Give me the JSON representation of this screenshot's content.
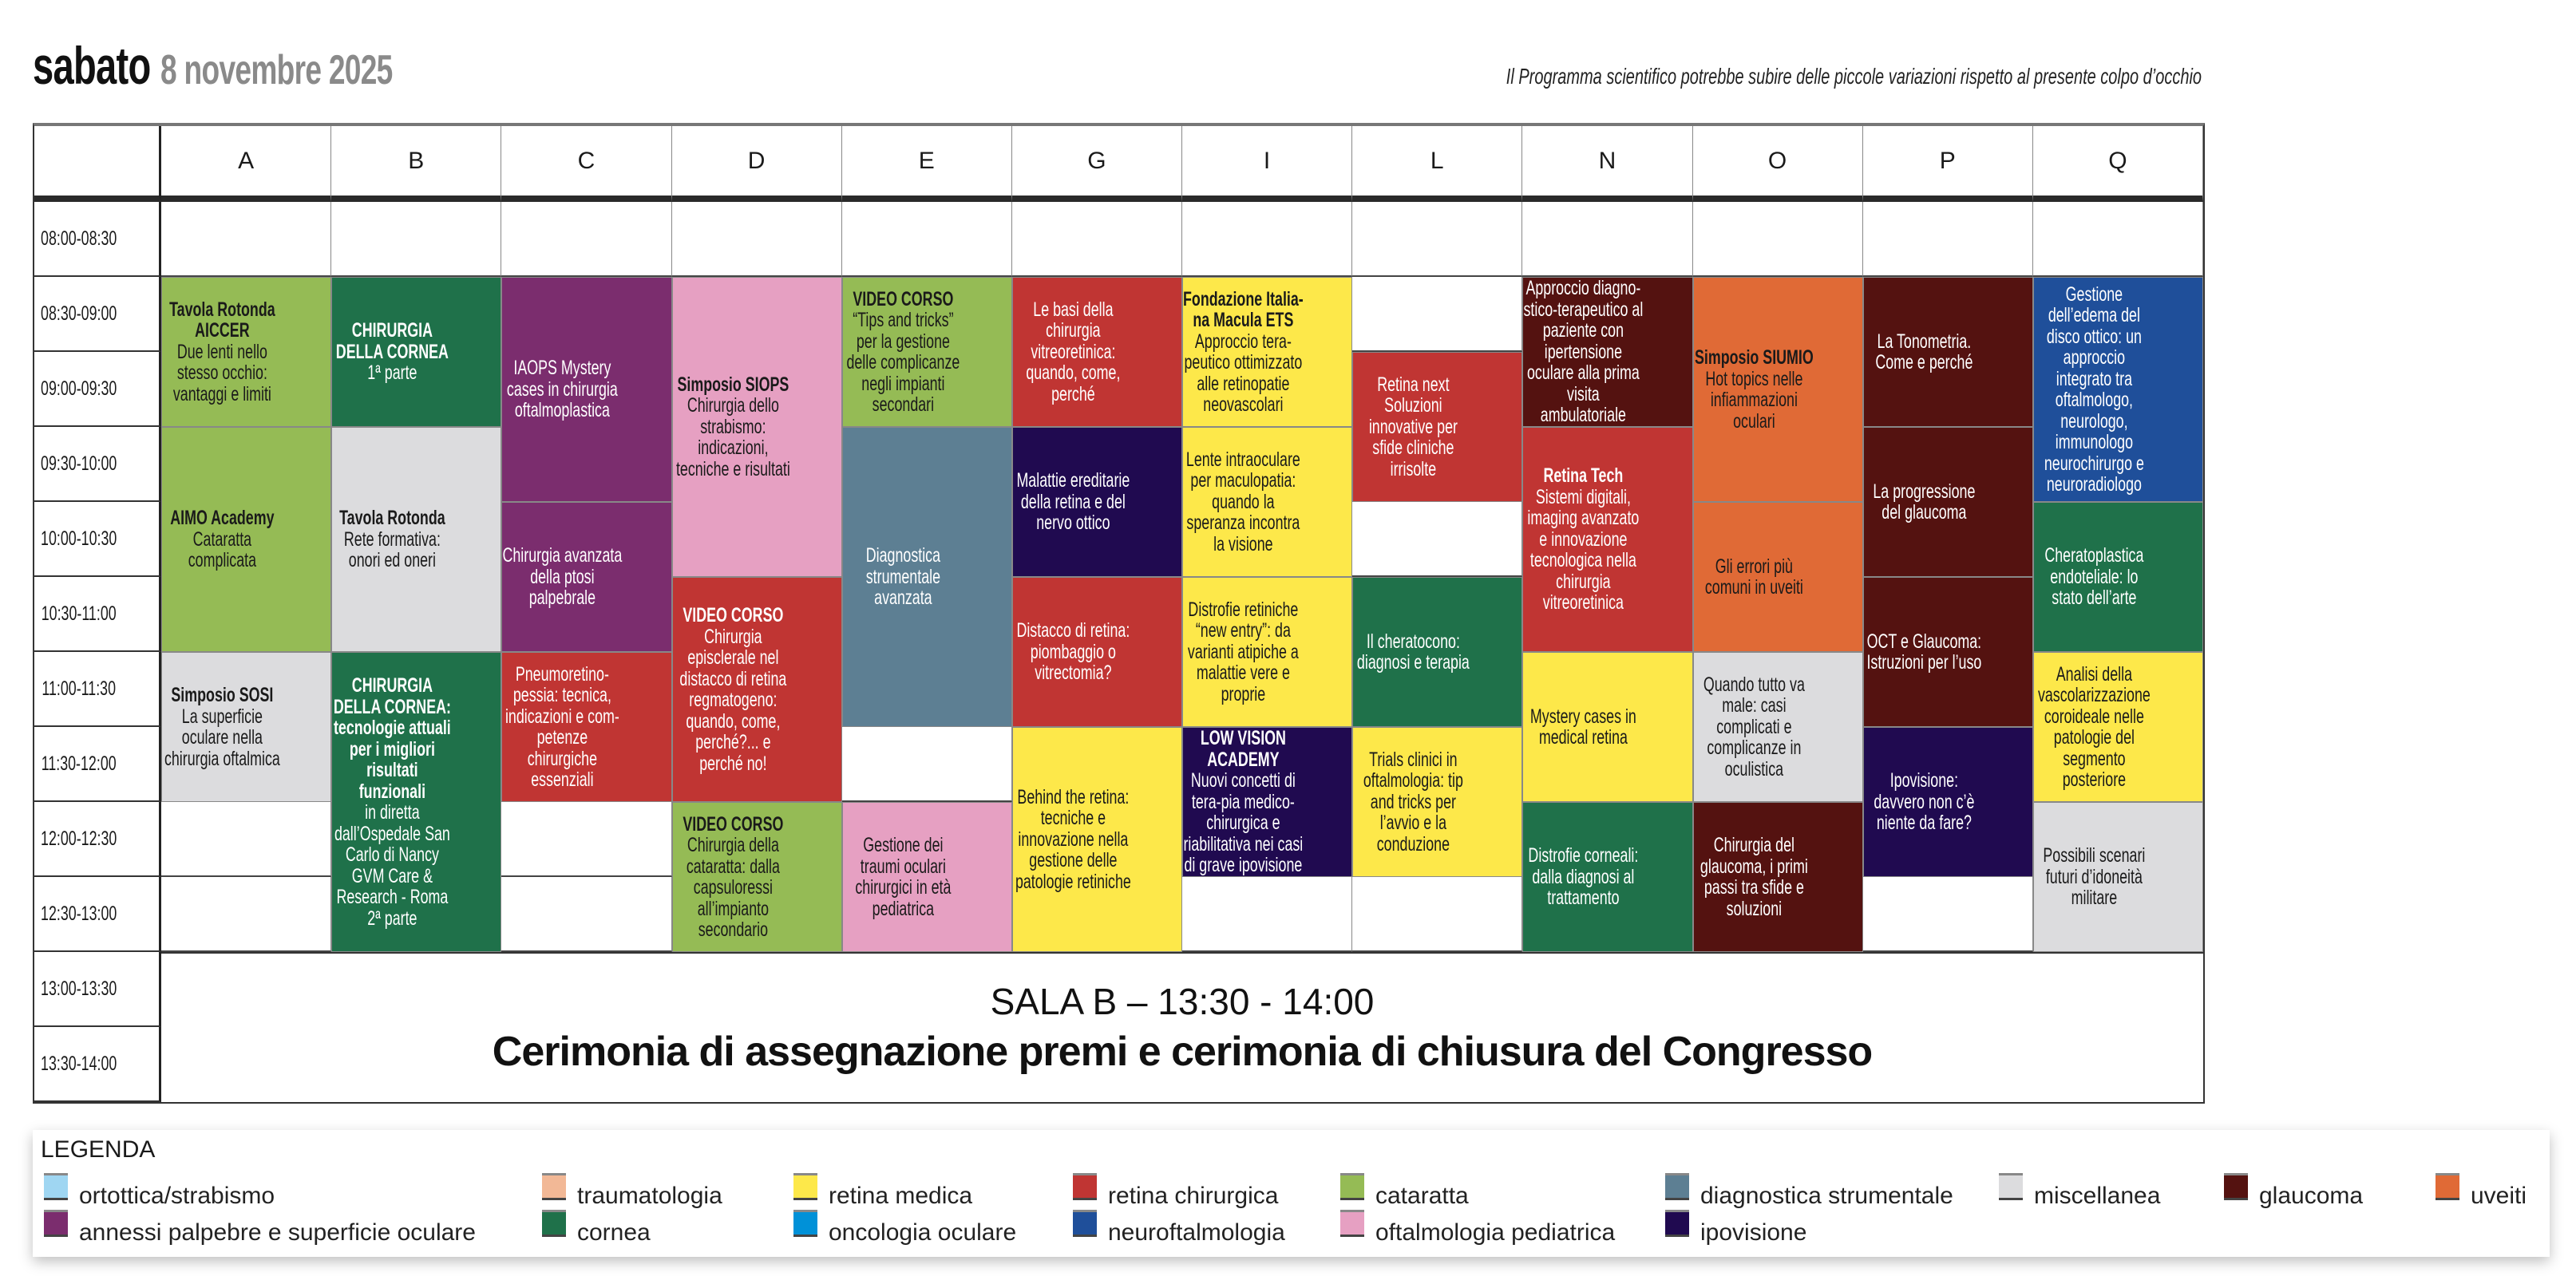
{
  "header": {
    "day": "sabato",
    "date": "8 novembre 2025",
    "note": "Il Programma scientifico potrebbe subire delle piccole variazioni rispetto al presente colpo d’occhio"
  },
  "columns": [
    "A",
    "B",
    "C",
    "D",
    "E",
    "G",
    "I",
    "L",
    "N",
    "O",
    "P",
    "Q"
  ],
  "times": [
    "08:00-08:30",
    "08:30-09:00",
    "09:00-09:30",
    "09:30-10:00",
    "10:00-10:30",
    "10:30-11:00",
    "11:00-11:30",
    "11:30-12:00",
    "12:00-12:30",
    "12:30-13:00",
    "13:00-13:30",
    "13:30-14:00"
  ],
  "sessions": [
    {
      "col": "A",
      "start": "08:30",
      "end": "09:30",
      "category": "cataratta",
      "title": "Tavola Rotonda AICCER",
      "body": "Due lenti nello stesso occhio: vantaggi e limiti"
    },
    {
      "col": "A",
      "start": "09:30",
      "end": "11:00",
      "category": "cataratta",
      "title": "AIMO Academy",
      "body": "Cataratta complicata"
    },
    {
      "col": "A",
      "start": "11:00",
      "end": "12:00",
      "category": "miscellanea",
      "title": "Simposio SOSI",
      "body": "La superficie oculare nella chirurgia oftalmica"
    },
    {
      "col": "B",
      "start": "08:30",
      "end": "09:30",
      "category": "cornea",
      "title": "CHIRURGIA DELLA CORNEA",
      "body": "1ª parte"
    },
    {
      "col": "B",
      "start": "09:30",
      "end": "11:00",
      "category": "miscellanea",
      "title": "Tavola Rotonda",
      "body": "Rete formativa: onori ed oneri"
    },
    {
      "col": "B",
      "start": "11:00",
      "end": "13:00",
      "category": "cornea",
      "title": "CHIRURGIA DELLA CORNEA: tecnologie attuali per i migliori risultati funzionali",
      "body": "in diretta dall’Ospedale San Carlo di Nancy GVM Care & Research - Roma 2ª parte"
    },
    {
      "col": "C",
      "start": "08:30",
      "end": "10:00",
      "category": "annessi palpebre e superficie oculare",
      "title": "",
      "body": "IAOPS Mystery cases in chirurgia oftalmoplastica"
    },
    {
      "col": "C",
      "start": "10:00",
      "end": "11:00",
      "category": "annessi palpebre e superficie oculare",
      "title": "",
      "body": "Chirurgia avanzata della ptosi palpebrale"
    },
    {
      "col": "C",
      "start": "11:00",
      "end": "12:00",
      "category": "retina chirurgica",
      "title": "",
      "body": "Pneumoretino-pessia: tecnica, indicazioni e com-petenze chirurgiche essenziali"
    },
    {
      "col": "D",
      "start": "08:30",
      "end": "10:30",
      "category": "oftalmologia pediatrica",
      "title": "Simposio SIOPS",
      "body": "Chirurgia dello strabismo: indicazioni, tecniche e risultati"
    },
    {
      "col": "D",
      "start": "10:30",
      "end": "12:00",
      "category": "retina chirurgica",
      "title": "VIDEO CORSO",
      "body": "Chirurgia episclerale nel distacco di retina regmatogeno: quando, come, perché?... e perché no!"
    },
    {
      "col": "D",
      "start": "12:00",
      "end": "13:00",
      "category": "cataratta",
      "title": "VIDEO CORSO",
      "body": "Chirurgia della cataratta: dalla capsuloressi all’impianto secondario"
    },
    {
      "col": "E",
      "start": "08:30",
      "end": "09:30",
      "category": "cataratta",
      "title": "VIDEO CORSO",
      "body": "“Tips and tricks” per la gestione delle complicanze negli impianti secondari"
    },
    {
      "col": "E",
      "start": "09:30",
      "end": "11:30",
      "category": "diagnostica strumentale",
      "title": "",
      "body": "Diagnostica strumentale avanzata"
    },
    {
      "col": "E",
      "start": "12:00",
      "end": "13:00",
      "category": "oftalmologia pediatrica",
      "title": "",
      "body": "Gestione dei traumi oculari chirurgici in età pediatrica"
    },
    {
      "col": "G",
      "start": "08:30",
      "end": "09:30",
      "category": "retina chirurgica",
      "title": "",
      "body": "Le basi della chirurgia vitreoretinica: quando, come, perché"
    },
    {
      "col": "G",
      "start": "09:30",
      "end": "10:30",
      "category": "ipovisione",
      "title": "",
      "body": "Malattie ereditarie della retina e del nervo ottico"
    },
    {
      "col": "G",
      "start": "10:30",
      "end": "11:30",
      "category": "retina chirurgica",
      "title": "",
      "body": "Distacco di retina: piombaggio o vitrectomia?"
    },
    {
      "col": "G",
      "start": "11:30",
      "end": "13:00",
      "category": "retina medica",
      "title": "",
      "body": "Behind the retina: tecniche e innovazione nella gestione delle patologie retiniche"
    },
    {
      "col": "I",
      "start": "08:30",
      "end": "09:30",
      "category": "retina medica",
      "title": "Fondazione Italia-na Macula ETS",
      "body": "Approccio tera-peutico ottimizzato alle retinopatie neovascolari"
    },
    {
      "col": "I",
      "start": "09:30",
      "end": "10:30",
      "category": "retina medica",
      "title": "",
      "body": "Lente intraoculare per maculopatia: quando la speranza incontra la visione"
    },
    {
      "col": "I",
      "start": "10:30",
      "end": "11:30",
      "category": "retina medica",
      "title": "",
      "body": "Distrofie retiniche “new entry”: da varianti atipiche a malattie vere e proprie"
    },
    {
      "col": "I",
      "start": "11:30",
      "end": "12:30",
      "category": "ipovisione",
      "title": "LOW VISION ACADEMY",
      "body": "Nuovi concetti di tera-pia medico-chirurgica e riabilitativa nei casi di grave ipovisione"
    },
    {
      "col": "L",
      "start": "09:00",
      "end": "10:00",
      "category": "retina chirurgica",
      "title": "",
      "body": "Retina next Soluzioni innovative per sfide cliniche irrisolte"
    },
    {
      "col": "L",
      "start": "10:30",
      "end": "11:30",
      "category": "cornea",
      "title": "",
      "body": "Il cheratocono: diagnosi e terapia"
    },
    {
      "col": "L",
      "start": "11:30",
      "end": "12:30",
      "category": "retina medica",
      "title": "",
      "body": "Trials clinici in oftalmologia: tip and tricks per l’avvio e la conduzione"
    },
    {
      "col": "N",
      "start": "08:30",
      "end": "09:30",
      "category": "glaucoma",
      "title": "",
      "body": "Approccio diagno-stico-terapeutico al paziente con ipertensione oculare alla prima visita ambulatoriale"
    },
    {
      "col": "N",
      "start": "09:30",
      "end": "11:00",
      "category": "retina chirurgica",
      "title": "Retina Tech",
      "body": "Sistemi digitali, imaging avanzato e innovazione tecnologica nella chirurgia vitreoretinica"
    },
    {
      "col": "N",
      "start": "11:00",
      "end": "12:00",
      "category": "retina medica",
      "title": "",
      "body": "Mystery cases in medical retina"
    },
    {
      "col": "N",
      "start": "12:00",
      "end": "13:00",
      "category": "cornea",
      "title": "",
      "body": "Distrofie corneali: dalla diagnosi al trattamento"
    },
    {
      "col": "O",
      "start": "08:30",
      "end": "10:00",
      "category": "uveiti",
      "title": "Simposio SIUMIO",
      "body": "Hot topics nelle infiammazioni oculari"
    },
    {
      "col": "O",
      "start": "10:00",
      "end": "11:00",
      "category": "uveiti",
      "title": "",
      "body": "Gli errori più comuni in uveiti"
    },
    {
      "col": "O",
      "start": "11:00",
      "end": "12:00",
      "category": "miscellanea",
      "title": "",
      "body": "Quando tutto va male: casi complicati e complicanze in oculistica"
    },
    {
      "col": "O",
      "start": "12:00",
      "end": "13:00",
      "category": "glaucoma",
      "title": "",
      "body": "Chirurgia del glaucoma, i primi passi tra sfide e soluzioni"
    },
    {
      "col": "P",
      "start": "08:30",
      "end": "09:30",
      "category": "glaucoma",
      "title": "",
      "body": "La Tonometria. Come e perché"
    },
    {
      "col": "P",
      "start": "09:30",
      "end": "10:30",
      "category": "glaucoma",
      "title": "",
      "body": "La progressione del glaucoma"
    },
    {
      "col": "P",
      "start": "10:30",
      "end": "11:30",
      "category": "glaucoma",
      "title": "",
      "body": "OCT e Glaucoma: Istruzioni per l’uso"
    },
    {
      "col": "P",
      "start": "11:30",
      "end": "12:30",
      "category": "ipovisione",
      "title": "",
      "body": "Ipovisione: davvero non c’è niente da fare?"
    },
    {
      "col": "Q",
      "start": "08:30",
      "end": "10:00",
      "category": "neuroftalmologia",
      "title": "",
      "body": "Gestione dell’edema del disco ottico: un approccio integrato tra oftalmologo, neurologo, immunologo neurochirurgo e neuroradiologo"
    },
    {
      "col": "Q",
      "start": "10:00",
      "end": "11:00",
      "category": "cornea",
      "title": "",
      "body": "Cheratoplastica endoteliale: lo stato dell’arte"
    },
    {
      "col": "Q",
      "start": "11:00",
      "end": "12:00",
      "category": "retina medica",
      "title": "",
      "body": "Analisi della vascolarizzazione coroideale nelle patologie del segmento posteriore"
    },
    {
      "col": "Q",
      "start": "12:00",
      "end": "13:00",
      "category": "miscellanea",
      "title": "",
      "body": "Possibili scenari futuri d’idoneità militare"
    }
  ],
  "ceremony": {
    "line1": "SALA B – 13:30 - 14:00",
    "line2": "Cerimonia di assegnazione premi e cerimonia di chiusura del Congresso"
  },
  "legend": {
    "title": "LEGENDA",
    "items": [
      {
        "label": "ortottica/strabismo",
        "color": "#9fd6f2",
        "text_color": "#1a1a1a"
      },
      {
        "label": "traumatologia",
        "color": "#f2b896",
        "text_color": "#1a1a1a"
      },
      {
        "label": "retina medica",
        "color": "#fde84a",
        "text_color": "#1a1a1a"
      },
      {
        "label": "retina chirurgica",
        "color": "#c03533",
        "text_color": "#ffffff"
      },
      {
        "label": "cataratta",
        "color": "#95bb55",
        "text_color": "#1a1a1a"
      },
      {
        "label": "diagnostica strumentale",
        "color": "#5d7f93",
        "text_color": "#ffffff"
      },
      {
        "label": "miscellanea",
        "color": "#dcdcde",
        "text_color": "#1a1a1a"
      },
      {
        "label": "glaucoma",
        "color": "#541210",
        "text_color": "#ffffff"
      },
      {
        "label": "uveiti",
        "color": "#e06a36",
        "text_color": "#1a1a1a"
      },
      {
        "label": "annessi palpebre e superficie oculare",
        "color": "#7b2d6e",
        "text_color": "#ffffff"
      },
      {
        "label": "cornea",
        "color": "#1f714a",
        "text_color": "#ffffff"
      },
      {
        "label": "oncologia oculare",
        "color": "#0091d8",
        "text_color": "#ffffff"
      },
      {
        "label": "neuroftalmologia",
        "color": "#1f4f9a",
        "text_color": "#ffffff"
      },
      {
        "label": "oftalmologia pediatrica",
        "color": "#e6a0c2",
        "text_color": "#1a1a1a"
      },
      {
        "label": "ipovisione",
        "color": "#200a50",
        "text_color": "#ffffff"
      }
    ]
  }
}
